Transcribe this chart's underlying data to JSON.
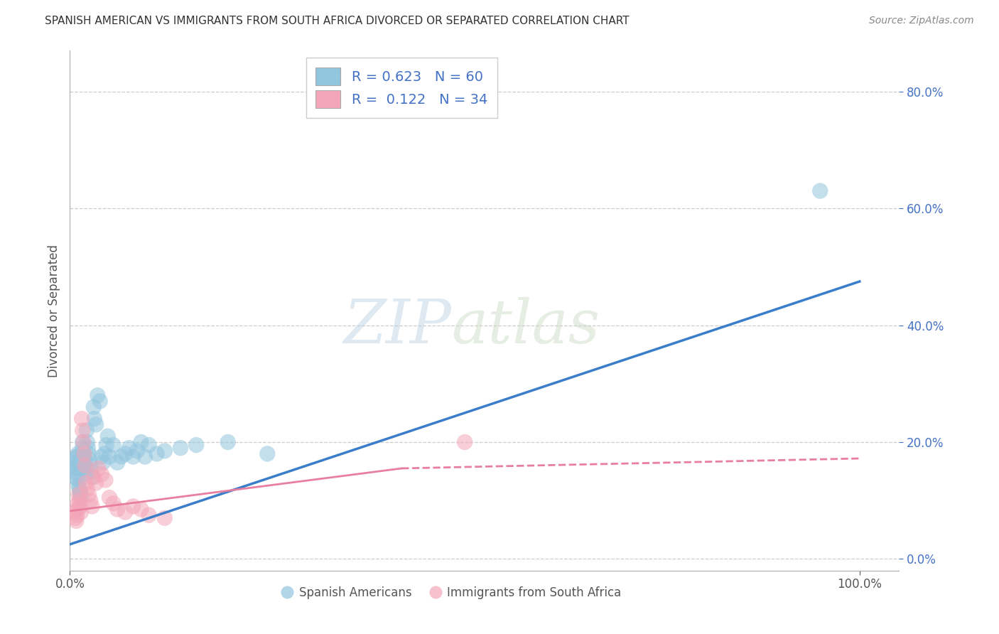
{
  "title": "SPANISH AMERICAN VS IMMIGRANTS FROM SOUTH AFRICA DIVORCED OR SEPARATED CORRELATION CHART",
  "source": "Source: ZipAtlas.com",
  "ylabel": "Divorced or Separated",
  "y_tick_values": [
    0.0,
    0.2,
    0.4,
    0.6,
    0.8
  ],
  "y_tick_labels": [
    "0.0%",
    "20.0%",
    "40.0%",
    "60.0%",
    "80.0%"
  ],
  "x_tick_labels": [
    "0.0%",
    "100.0%"
  ],
  "xlim": [
    0.0,
    1.05
  ],
  "ylim": [
    -0.02,
    0.87
  ],
  "blue_color": "#92c5de",
  "pink_color": "#f4a6b8",
  "blue_line_color": "#3a7dc9",
  "pink_line_color": "#e87fa0",
  "legend_R_blue": "0.623",
  "legend_N_blue": "60",
  "legend_R_pink": "0.122",
  "legend_N_pink": "34",
  "legend_label_blue": "Spanish Americans",
  "legend_label_pink": "Immigrants from South Africa",
  "watermark_zip": "ZIP",
  "watermark_atlas": "atlas",
  "blue_scatter_x": [
    0.005,
    0.007,
    0.008,
    0.009,
    0.01,
    0.01,
    0.01,
    0.01,
    0.01,
    0.01,
    0.011,
    0.012,
    0.013,
    0.013,
    0.014,
    0.015,
    0.015,
    0.016,
    0.016,
    0.017,
    0.018,
    0.019,
    0.02,
    0.02,
    0.021,
    0.022,
    0.023,
    0.024,
    0.025,
    0.026,
    0.027,
    0.028,
    0.03,
    0.031,
    0.033,
    0.035,
    0.038,
    0.04,
    0.042,
    0.044,
    0.046,
    0.048,
    0.05,
    0.055,
    0.06,
    0.065,
    0.07,
    0.075,
    0.08,
    0.085,
    0.09,
    0.095,
    0.1,
    0.11,
    0.12,
    0.14,
    0.16,
    0.2,
    0.25,
    0.95
  ],
  "blue_scatter_y": [
    0.155,
    0.14,
    0.175,
    0.16,
    0.18,
    0.175,
    0.165,
    0.155,
    0.145,
    0.135,
    0.125,
    0.12,
    0.115,
    0.11,
    0.105,
    0.175,
    0.165,
    0.2,
    0.19,
    0.18,
    0.17,
    0.16,
    0.155,
    0.145,
    0.22,
    0.2,
    0.19,
    0.18,
    0.17,
    0.16,
    0.15,
    0.14,
    0.26,
    0.24,
    0.23,
    0.28,
    0.27,
    0.175,
    0.165,
    0.18,
    0.195,
    0.21,
    0.175,
    0.195,
    0.165,
    0.175,
    0.18,
    0.19,
    0.175,
    0.185,
    0.2,
    0.175,
    0.195,
    0.18,
    0.185,
    0.19,
    0.195,
    0.2,
    0.18,
    0.63
  ],
  "pink_scatter_x": [
    0.005,
    0.007,
    0.008,
    0.009,
    0.01,
    0.01,
    0.011,
    0.012,
    0.013,
    0.014,
    0.015,
    0.016,
    0.017,
    0.018,
    0.019,
    0.02,
    0.022,
    0.024,
    0.026,
    0.028,
    0.03,
    0.033,
    0.036,
    0.04,
    0.045,
    0.05,
    0.055,
    0.06,
    0.07,
    0.08,
    0.09,
    0.1,
    0.12,
    0.5
  ],
  "pink_scatter_y": [
    0.08,
    0.07,
    0.065,
    0.075,
    0.095,
    0.085,
    0.11,
    0.1,
    0.09,
    0.08,
    0.24,
    0.22,
    0.2,
    0.18,
    0.16,
    0.13,
    0.12,
    0.11,
    0.1,
    0.09,
    0.14,
    0.13,
    0.155,
    0.145,
    0.135,
    0.105,
    0.095,
    0.085,
    0.08,
    0.09,
    0.085,
    0.075,
    0.07,
    0.2
  ],
  "blue_line_x0": 0.0,
  "blue_line_x1": 1.0,
  "blue_line_y0": 0.025,
  "blue_line_y1": 0.475,
  "pink_line_solid_x0": 0.0,
  "pink_line_solid_x1": 0.42,
  "pink_line_solid_y0": 0.082,
  "pink_line_solid_y1": 0.155,
  "pink_line_dash_x0": 0.42,
  "pink_line_dash_x1": 1.0,
  "pink_line_dash_y0": 0.155,
  "pink_line_dash_y1": 0.172,
  "grid_color": "#cccccc",
  "background_color": "#ffffff",
  "title_color": "#333333",
  "axis_label_color": "#555555",
  "tick_color": "#555555",
  "ytick_color": "#4472c4"
}
